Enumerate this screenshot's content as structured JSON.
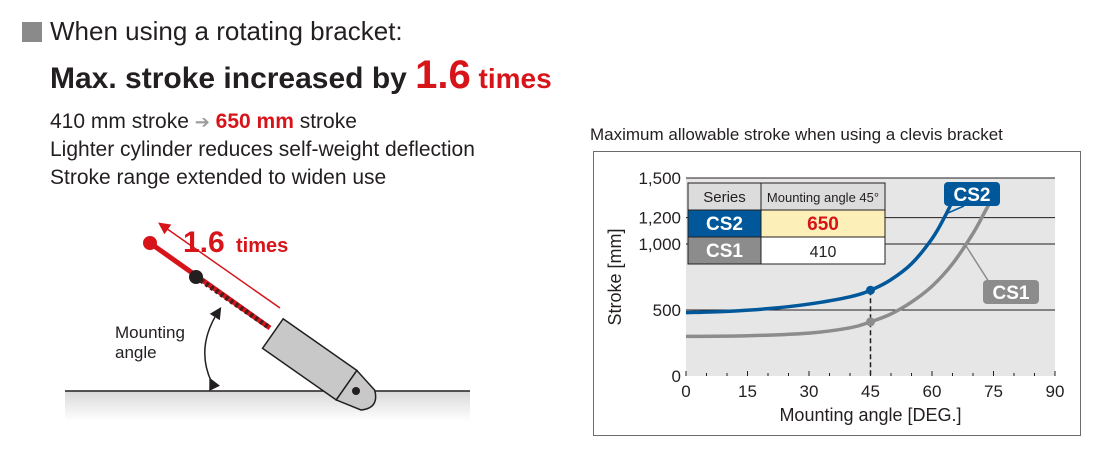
{
  "header": {
    "line1": "When using a rotating bracket:",
    "line2_prefix": "Max. stroke increased by ",
    "line2_highlight": "1.6",
    "line2_suffix": " times"
  },
  "points": {
    "line1_a": "410 mm stroke",
    "line1_b": "650 mm",
    "line1_c": " stroke",
    "line2": "Lighter cylinder reduces self-weight deflection",
    "line3": "Stroke range extended to widen use"
  },
  "illustration": {
    "factor": "1.6",
    "factor_unit": "times",
    "angle_label_1": "Mounting",
    "angle_label_2": "angle"
  },
  "colors": {
    "accent_red": "#d7141a",
    "cs2_blue": "#00589a",
    "cs1_gray": "#8c8c8c",
    "plot_bg": "#e6e6e6",
    "highlight_cell": "#fcefb8"
  },
  "chart_data": {
    "type": "line",
    "title": "Maximum allowable stroke when using a clevis bracket",
    "xlabel": "Mounting angle [DEG.]",
    "ylabel": "Stroke [mm]",
    "xlim": [
      0,
      90
    ],
    "ylim": [
      0,
      1500
    ],
    "x_ticks": [
      0,
      15,
      30,
      45,
      60,
      75,
      90
    ],
    "x_tick_labels": [
      "0",
      "15",
      "30",
      "45",
      "60",
      "75",
      "90"
    ],
    "y_ticks": [
      0,
      500,
      1000,
      1200,
      1500
    ],
    "y_tick_labels": [
      "0",
      "500",
      "1,000",
      "1,200",
      "1,500"
    ],
    "grid": "horizontal",
    "series": [
      {
        "name": "CS2",
        "x": [
          0,
          10,
          20,
          30,
          40,
          45,
          50,
          55,
          60,
          63,
          66
        ],
        "y": [
          480,
          490,
          510,
          545,
          600,
          650,
          730,
          850,
          1040,
          1200,
          1390
        ]
      },
      {
        "name": "CS1",
        "x": [
          0,
          15,
          30,
          40,
          45,
          50,
          55,
          60,
          65,
          70,
          73,
          76
        ],
        "y": [
          300,
          305,
          325,
          365,
          410,
          470,
          560,
          680,
          850,
          1080,
          1250,
          1420
        ]
      }
    ],
    "marker_x": 45,
    "markers": [
      {
        "series": "CS2",
        "x": 45,
        "y": 650
      },
      {
        "series": "CS1",
        "x": 45,
        "y": 410
      }
    ],
    "inset_table": {
      "headers": [
        "Series",
        "Mounting angle 45°"
      ],
      "rows": [
        {
          "series": "CS2",
          "value": "650"
        },
        {
          "series": "CS1",
          "value": "410"
        }
      ]
    }
  }
}
